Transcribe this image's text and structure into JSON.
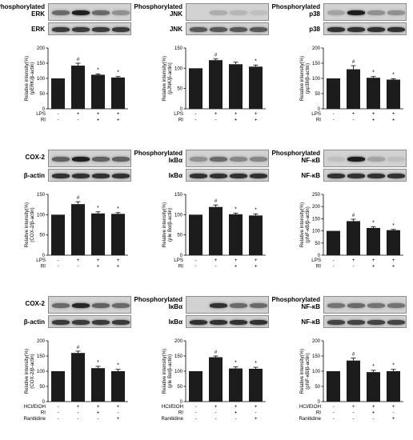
{
  "panels": [
    {
      "label_top": "Phosphorylated",
      "label_main": "ERK",
      "label_bottom": "ERK",
      "ylabel": [
        "Relative intensity(%)",
        "(ρERK/β-actin)"
      ],
      "top_intensity": [
        0.55,
        0.95,
        0.55,
        0.35
      ],
      "bottom_intensity": [
        0.8,
        0.8,
        0.8,
        0.8
      ]
    },
    {
      "label_top": "Phosphorylated",
      "label_main": "JNK",
      "label_bottom": "JNK",
      "ylabel": [
        "Relative intensity(%)",
        "(ρJNK/β-actin)"
      ],
      "top_intensity": [
        0.0,
        0.2,
        0.15,
        0.1
      ],
      "bottom_intensity": [
        0.65,
        0.65,
        0.65,
        0.65
      ]
    },
    {
      "label_top": "Phosphorylated",
      "label_main": "p38",
      "label_bottom": "p38",
      "ylabel": [
        "Relative intensity(%)",
        "(ρp38/β-actin)"
      ],
      "top_intensity": [
        0.25,
        0.95,
        0.35,
        0.35
      ],
      "bottom_intensity": [
        0.85,
        0.85,
        0.85,
        0.85
      ]
    },
    {
      "label_top": "",
      "label_main": "COX-2",
      "label_bottom": "β-actin",
      "ylabel": [
        "Relative intensity(%)",
        "(COX-2/β-actin)"
      ],
      "top_intensity": [
        0.6,
        0.95,
        0.6,
        0.6
      ],
      "bottom_intensity": [
        0.85,
        0.85,
        0.85,
        0.85
      ]
    },
    {
      "label_top": "Phosphorylated",
      "label_main": "IκBα",
      "label_bottom": "IκBα",
      "ylabel": [
        "Relative intensity(%)",
        "(ρIκ Bα/β-actin)"
      ],
      "top_intensity": [
        0.35,
        0.55,
        0.4,
        0.4
      ],
      "bottom_intensity": [
        0.85,
        0.85,
        0.85,
        0.85
      ]
    },
    {
      "label_top": "Phosphorylated",
      "label_main": "NF-κB",
      "label_bottom": "NF-κB",
      "ylabel": [
        "Relative intensity(%)",
        "(ρNF-κB/β-actin)"
      ],
      "top_intensity": [
        0.1,
        0.95,
        0.25,
        0.1
      ],
      "bottom_intensity": [
        0.85,
        0.85,
        0.85,
        0.85
      ]
    },
    {
      "label_top": "",
      "label_main": "COX-2",
      "label_bottom": "β-actin",
      "ylabel": [
        "Relative intensity(%)",
        "(COX-2/β-actin)"
      ],
      "top_intensity": [
        0.55,
        0.9,
        0.6,
        0.55
      ],
      "bottom_intensity": [
        0.8,
        0.8,
        0.8,
        0.8
      ]
    },
    {
      "label_top": "Phosphorylated",
      "label_main": "IκBα",
      "label_bottom": "IκBα",
      "ylabel": [
        "Relative intensity(%)",
        "(ρIκ Bα/β-actin)"
      ],
      "top_intensity": [
        0.0,
        0.85,
        0.55,
        0.55
      ],
      "bottom_intensity": [
        0.85,
        0.85,
        0.85,
        0.85
      ]
    },
    {
      "label_top": "Phosphorylated",
      "label_main": "NF-κB",
      "label_bottom": "NF-κB",
      "ylabel": [
        "Relative intensity(%)",
        "(ρNF-κB/β-actin)"
      ],
      "top_intensity": [
        0.5,
        0.55,
        0.5,
        0.5
      ],
      "bottom_intensity": [
        0.75,
        0.75,
        0.75,
        0.75
      ]
    }
  ],
  "treatment_rows": {
    "A": [
      {
        "label": "LPS",
        "signs": [
          "-",
          "+",
          "+",
          "+"
        ]
      },
      {
        "label": "RI",
        "signs": [
          "-",
          "-",
          "+",
          "+"
        ]
      }
    ],
    "B": [
      {
        "label": "HCl/EtOH",
        "signs": [
          "-",
          "+",
          "+",
          "+"
        ]
      },
      {
        "label": "RI",
        "signs": [
          "-",
          "-",
          "+",
          "-"
        ]
      },
      {
        "label": "Ranitidine",
        "signs": [
          "-",
          "-",
          "-",
          "+"
        ]
      }
    ]
  },
  "chart_data": [
    {
      "type": "bar",
      "ylim": [
        0,
        200
      ],
      "yticks": [
        0,
        50,
        100,
        150,
        200
      ],
      "values": [
        100,
        142,
        112,
        103
      ],
      "errors": [
        0,
        8,
        3,
        3
      ],
      "marks": [
        "",
        "#",
        "*",
        "*"
      ],
      "rows": "A"
    },
    {
      "type": "bar",
      "ylim": [
        0,
        150
      ],
      "yticks": [
        0,
        50,
        100,
        150
      ],
      "values": [
        100,
        120,
        110,
        104
      ],
      "errors": [
        0,
        3,
        5,
        4
      ],
      "marks": [
        "",
        "#",
        "",
        "*"
      ],
      "rows": "A"
    },
    {
      "type": "bar",
      "ylim": [
        0,
        200
      ],
      "yticks": [
        0,
        50,
        100,
        150,
        200
      ],
      "values": [
        100,
        130,
        102,
        96
      ],
      "errors": [
        0,
        12,
        4,
        3
      ],
      "marks": [
        "",
        "#",
        "*",
        "*"
      ],
      "rows": "A"
    },
    {
      "type": "bar",
      "ylim": [
        0,
        150
      ],
      "yticks": [
        0,
        50,
        100,
        150
      ],
      "values": [
        100,
        126,
        103,
        102
      ],
      "errors": [
        0,
        6,
        4,
        3
      ],
      "marks": [
        "",
        "#",
        "*",
        "*"
      ],
      "rows": "A"
    },
    {
      "type": "bar",
      "ylim": [
        0,
        150
      ],
      "yticks": [
        0,
        50,
        100,
        150
      ],
      "values": [
        100,
        119,
        101,
        98
      ],
      "errors": [
        0,
        5,
        3,
        4
      ],
      "marks": [
        "",
        "#",
        "*",
        "*"
      ],
      "rows": "A"
    },
    {
      "type": "bar",
      "ylim": [
        0,
        250
      ],
      "yticks": [
        0,
        50,
        100,
        150,
        200,
        250
      ],
      "values": [
        100,
        140,
        112,
        103
      ],
      "errors": [
        0,
        8,
        5,
        3
      ],
      "marks": [
        "",
        "#",
        "*",
        "*"
      ],
      "rows": "A"
    },
    {
      "type": "bar",
      "ylim": [
        0,
        200
      ],
      "yticks": [
        0,
        50,
        100,
        150,
        200
      ],
      "values": [
        100,
        160,
        110,
        100
      ],
      "errors": [
        0,
        6,
        6,
        6
      ],
      "marks": [
        "",
        "#",
        "*",
        "*"
      ],
      "rows": "B"
    },
    {
      "type": "bar",
      "ylim": [
        0,
        200
      ],
      "yticks": [
        0,
        50,
        100,
        150,
        200
      ],
      "values": [
        100,
        146,
        109,
        108
      ],
      "errors": [
        0,
        4,
        5,
        5
      ],
      "marks": [
        "",
        "#",
        "*",
        "*"
      ],
      "rows": "B"
    },
    {
      "type": "bar",
      "ylim": [
        0,
        200
      ],
      "yticks": [
        0,
        50,
        100,
        150,
        200
      ],
      "values": [
        100,
        135,
        97,
        100
      ],
      "errors": [
        0,
        8,
        6,
        6
      ],
      "marks": [
        "",
        "#",
        "*",
        "*"
      ],
      "rows": "B"
    }
  ]
}
